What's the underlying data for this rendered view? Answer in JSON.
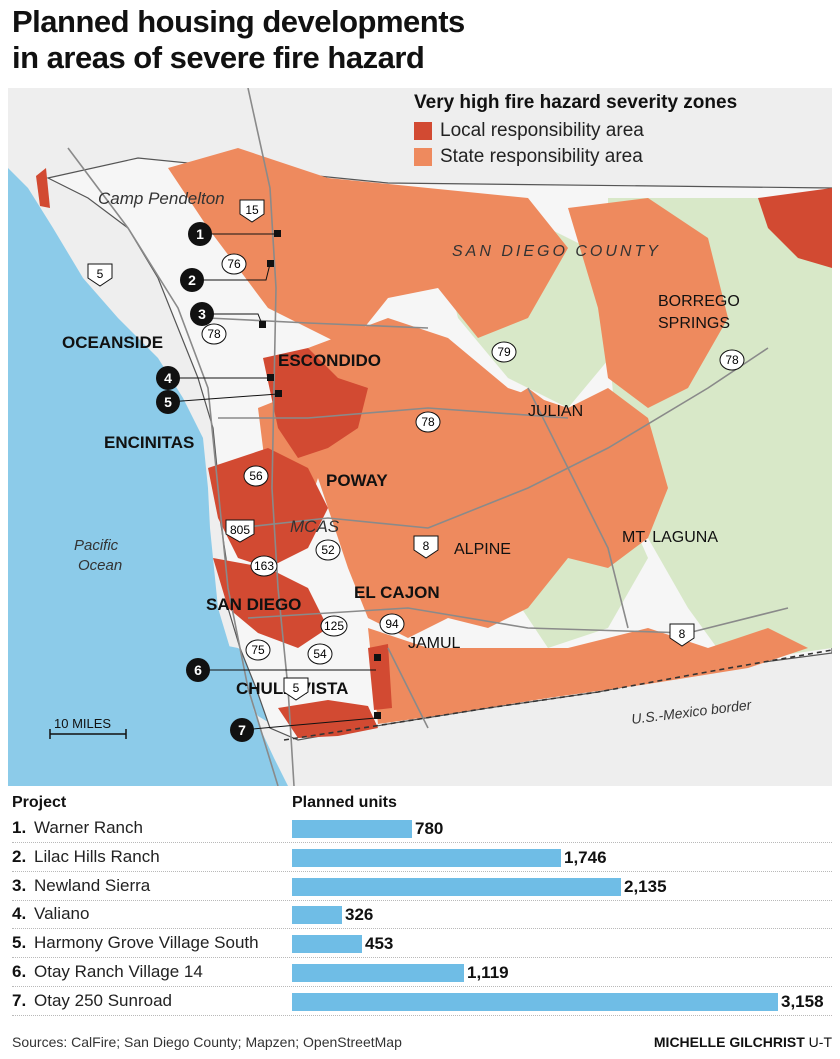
{
  "title_line1": "Planned housing developments",
  "title_line2": "in areas of severe fire hazard",
  "legend": {
    "title": "Very high fire hazard severity zones",
    "items": [
      {
        "label": "Local responsibility area",
        "color": "#d24a32"
      },
      {
        "label": "State responsibility area",
        "color": "#ee8a5e"
      }
    ]
  },
  "map": {
    "places": {
      "camp_pendelton": "Camp Pendelton",
      "oceanside": "OCEANSIDE",
      "escondido": "ESCONDIDO",
      "encinitas": "ENCINITAS",
      "poway": "POWAY",
      "mcas": "MCAS",
      "san_diego": "SAN DIEGO",
      "el_cajon": "EL CAJON",
      "alpine": "ALPINE",
      "jamul": "JAMUL",
      "chula_vista": "CHULA VISTA",
      "julian": "JULIAN",
      "mt_laguna": "MT. LAGUNA",
      "borrego_line1": "BORREGO",
      "borrego_line2": "SPRINGS",
      "county": "SAN DIEGO COUNTY",
      "pacific_line1": "Pacific",
      "pacific_line2": "Ocean",
      "border": "U.S.-Mexico border",
      "scale": "10 MILES"
    },
    "routes": [
      "15",
      "76",
      "78",
      "5",
      "56",
      "805",
      "163",
      "52",
      "125",
      "94",
      "54",
      "75",
      "5",
      "8",
      "8",
      "79",
      "78",
      "78"
    ],
    "markers": [
      "1",
      "2",
      "3",
      "4",
      "5",
      "6",
      "7"
    ]
  },
  "table": {
    "col_project": "Project",
    "col_units": "Planned units",
    "rows": [
      {
        "num": "1.",
        "name": "Warner Ranch",
        "units": 780,
        "label": "780"
      },
      {
        "num": "2.",
        "name": "Lilac Hills Ranch",
        "units": 1746,
        "label": "1,746"
      },
      {
        "num": "3.",
        "name": "Newland Sierra",
        "units": 2135,
        "label": "2,135"
      },
      {
        "num": "4.",
        "name": "Valiano",
        "units": 326,
        "label": "326"
      },
      {
        "num": "5.",
        "name": "Harmony Grove Village South",
        "units": 453,
        "label": "453"
      },
      {
        "num": "6.",
        "name": "Otay Ranch Village 14",
        "units": 1119,
        "label": "1,119"
      },
      {
        "num": "7.",
        "name": "Otay 250 Sunroad",
        "units": 3158,
        "label": "3,158"
      }
    ],
    "max_units": 3158
  },
  "footer": {
    "sources": "Sources: CalFire; San Diego County; Mapzen; OpenStreetMap",
    "credit_name": "MICHELLE GILCHRIST",
    "credit_org": "U-T"
  }
}
